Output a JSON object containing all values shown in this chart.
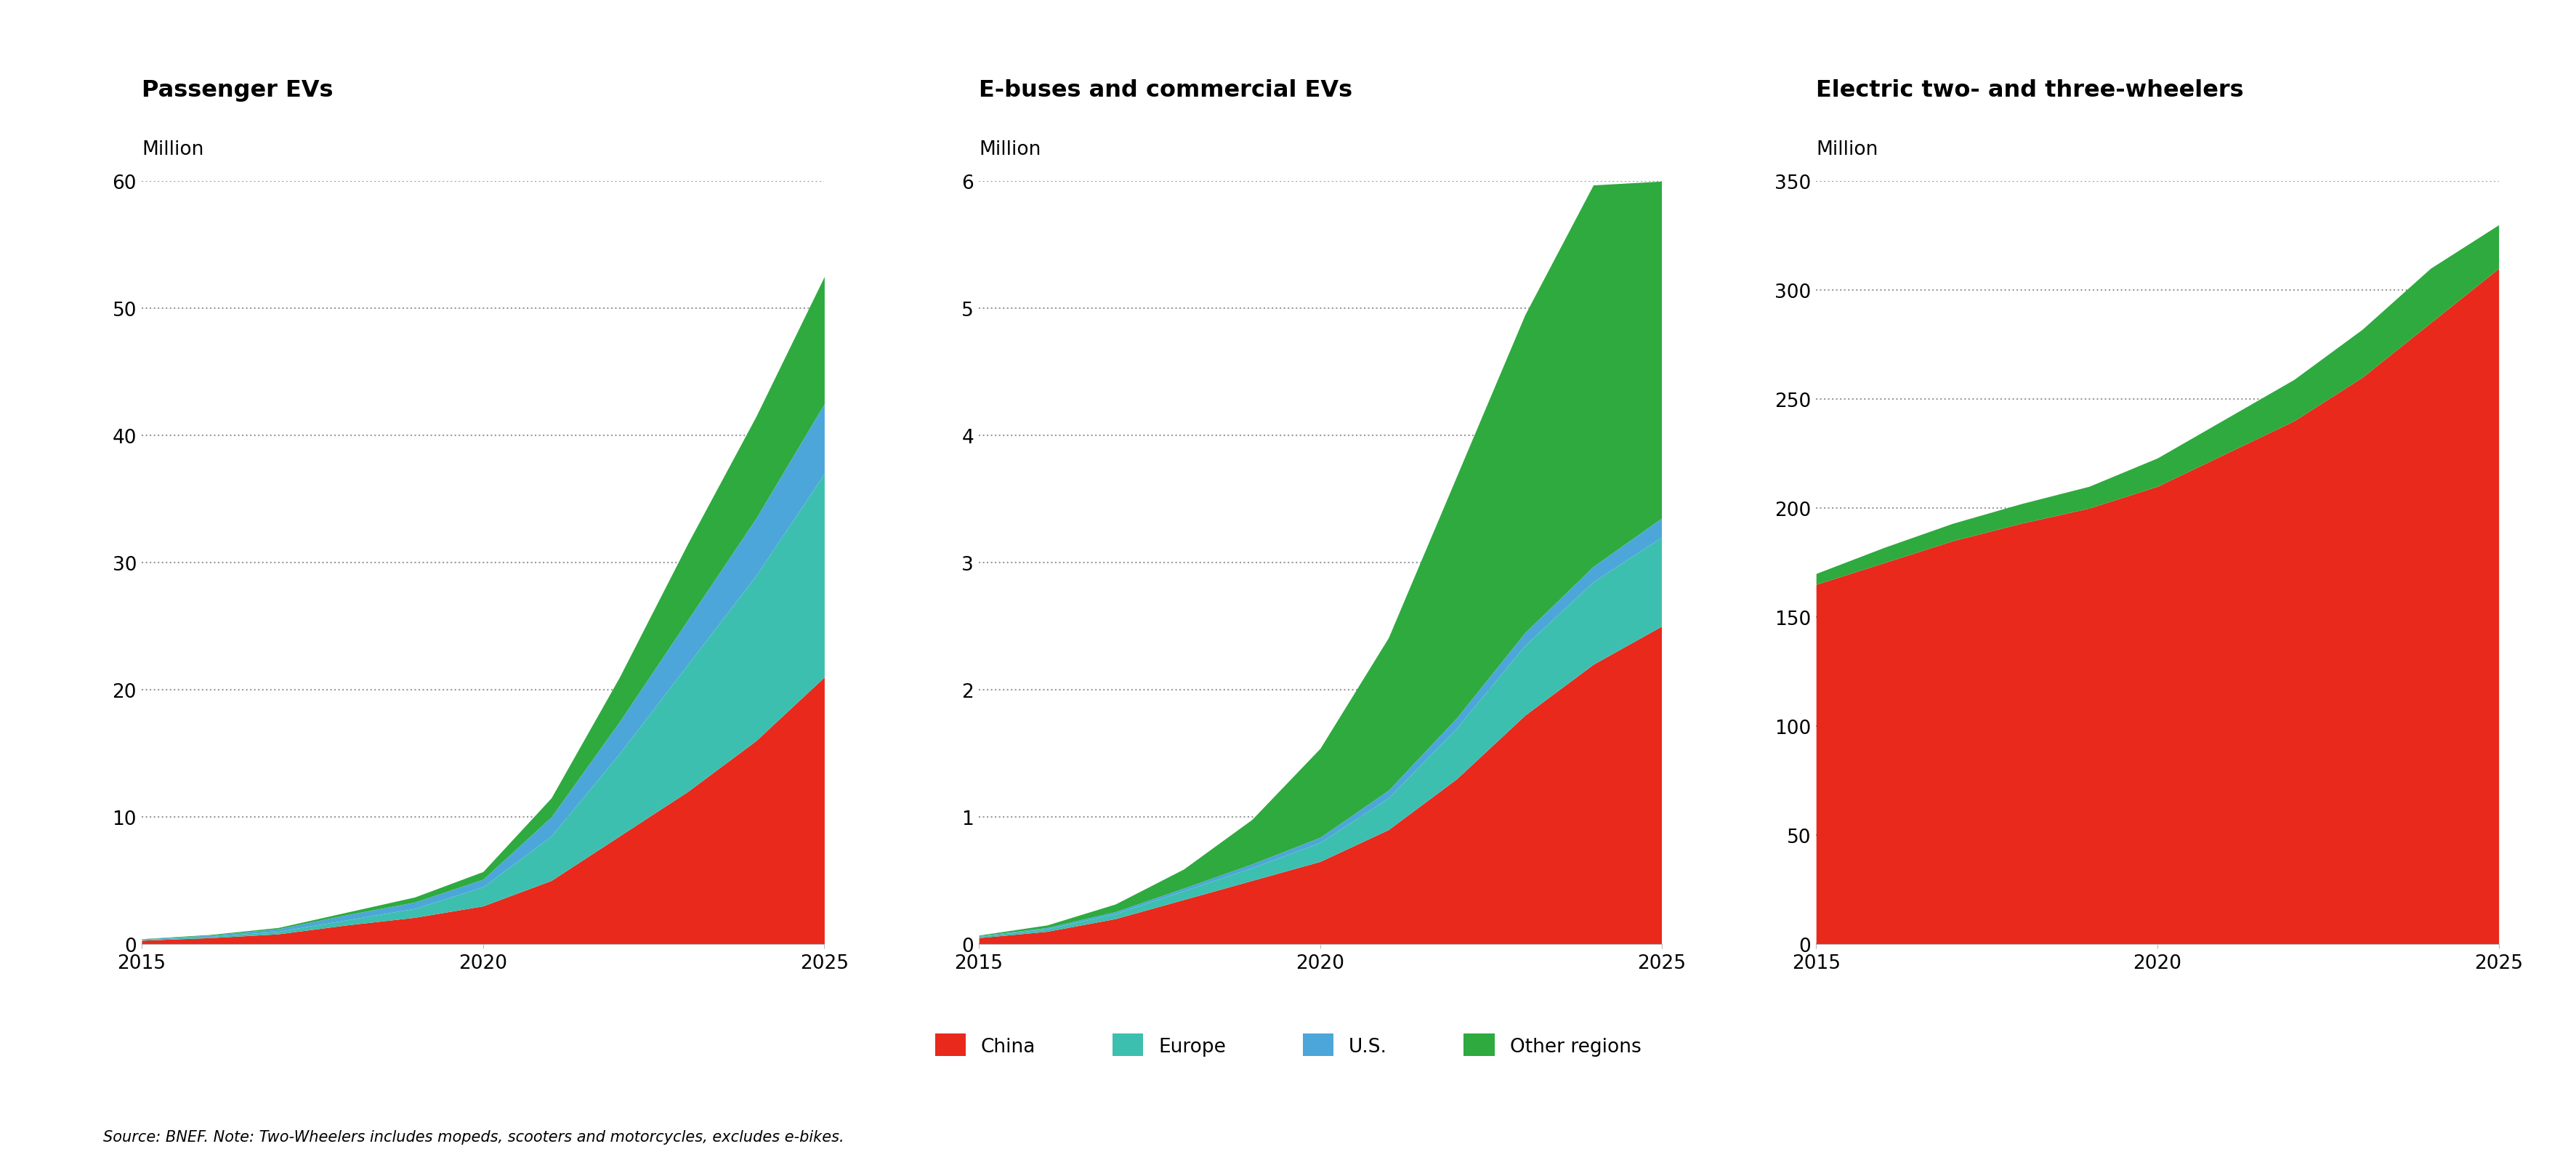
{
  "years": [
    2015,
    2016,
    2017,
    2018,
    2019,
    2020,
    2021,
    2022,
    2023,
    2024,
    2025
  ],
  "passenger": {
    "title": "Passenger EVs",
    "unit": "Million",
    "ylim": [
      0,
      60
    ],
    "yticks": [
      0,
      10,
      20,
      30,
      40,
      50,
      60
    ],
    "china": [
      0.3,
      0.5,
      0.8,
      1.5,
      2.1,
      3.0,
      5.0,
      8.5,
      12.0,
      16.0,
      21.0
    ],
    "europe": [
      0.05,
      0.1,
      0.2,
      0.4,
      0.7,
      1.5,
      3.5,
      6.5,
      10.0,
      13.0,
      16.0
    ],
    "us": [
      0.05,
      0.1,
      0.2,
      0.4,
      0.5,
      0.6,
      1.5,
      2.5,
      3.5,
      4.5,
      5.5
    ],
    "other": [
      0.02,
      0.05,
      0.1,
      0.2,
      0.4,
      0.6,
      1.5,
      3.5,
      6.0,
      8.0,
      10.0
    ]
  },
  "buses": {
    "title": "E-buses and commercial EVs",
    "unit": "Million",
    "ylim": [
      0,
      6
    ],
    "yticks": [
      0,
      1,
      2,
      3,
      4,
      5,
      6
    ],
    "china": [
      0.05,
      0.1,
      0.2,
      0.35,
      0.5,
      0.65,
      0.9,
      1.3,
      1.8,
      2.2,
      2.5
    ],
    "europe": [
      0.01,
      0.02,
      0.04,
      0.07,
      0.1,
      0.15,
      0.25,
      0.4,
      0.55,
      0.65,
      0.7
    ],
    "us": [
      0.005,
      0.01,
      0.015,
      0.02,
      0.03,
      0.04,
      0.06,
      0.08,
      0.1,
      0.12,
      0.15
    ],
    "other": [
      0.005,
      0.02,
      0.06,
      0.15,
      0.35,
      0.7,
      1.2,
      1.9,
      2.5,
      3.0,
      2.65
    ]
  },
  "twowheelers": {
    "title": "Electric two- and three-wheelers",
    "unit": "Million",
    "ylim": [
      0,
      350
    ],
    "yticks": [
      0,
      50,
      100,
      150,
      200,
      250,
      300,
      350
    ],
    "china": [
      165,
      175,
      185,
      193,
      200,
      210,
      225,
      240,
      260,
      285,
      310
    ],
    "other": [
      5,
      7,
      8,
      9,
      10,
      13,
      16,
      19,
      22,
      25,
      20
    ]
  },
  "colors": {
    "china": "#e8291c",
    "europe": "#3dbfb0",
    "us": "#4da6d9",
    "other": "#2eaa3f"
  },
  "legend": {
    "china_label": "China",
    "europe_label": "Europe",
    "us_label": "U.S.",
    "other_label": "Other regions"
  },
  "source_text": "Source: BNEF. Note: Two-Wheelers includes mopeds, scooters and motorcycles, excludes e-bikes.",
  "background_color": "#ffffff",
  "grid_color": "#999999",
  "title_fontsize": 23,
  "unit_fontsize": 19,
  "tick_fontsize": 19,
  "legend_fontsize": 19,
  "source_fontsize": 15
}
